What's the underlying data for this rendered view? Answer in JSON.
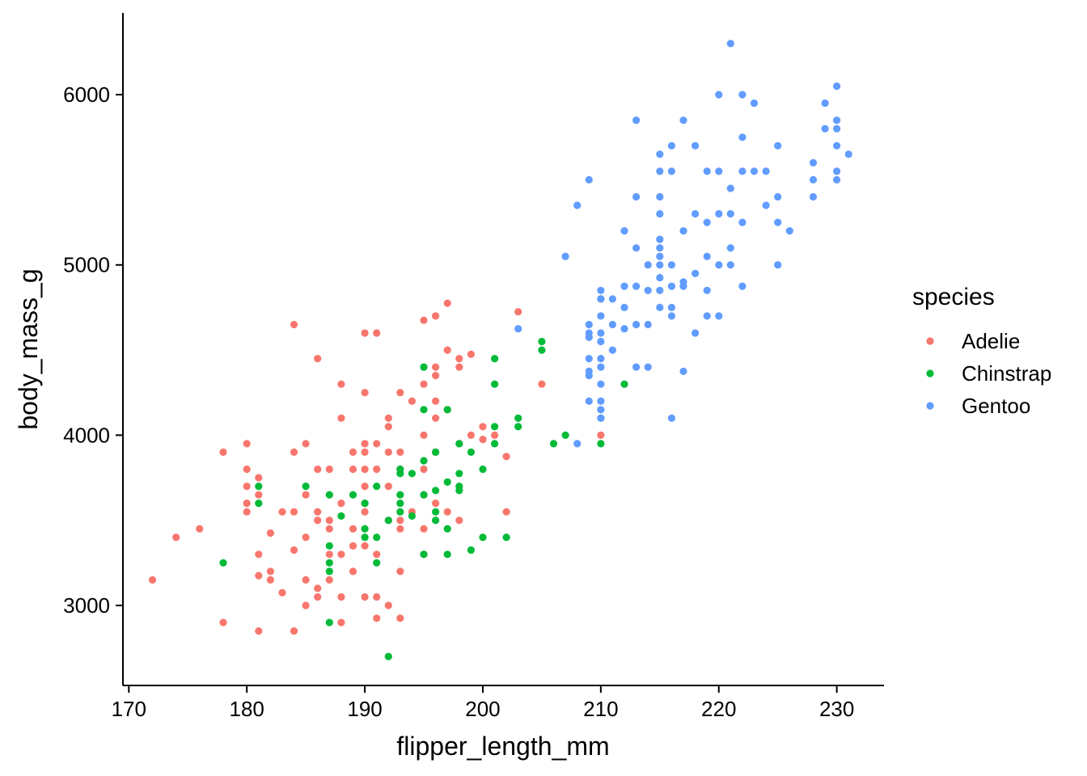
{
  "chart_data": {
    "type": "scatter",
    "title": "",
    "xlabel": "flipper_length_mm",
    "ylabel": "body_mass_g",
    "xlim": [
      169.5,
      234
    ],
    "ylim": [
      2530,
      6480
    ],
    "xticks": [
      170,
      180,
      190,
      200,
      210,
      220,
      230
    ],
    "yticks": [
      3000,
      4000,
      5000,
      6000
    ],
    "grid": false,
    "legend": {
      "title": "species",
      "position": "right"
    },
    "series": [
      {
        "name": "Adelie",
        "color": "#F8766D",
        "points": [
          [
            172,
            3150
          ],
          [
            174,
            3400
          ],
          [
            176,
            3450
          ],
          [
            178,
            3900
          ],
          [
            178,
            2900
          ],
          [
            180,
            3950
          ],
          [
            180,
            3800
          ],
          [
            180,
            3700
          ],
          [
            180,
            3600
          ],
          [
            180,
            3550
          ],
          [
            181,
            3750
          ],
          [
            181,
            3650
          ],
          [
            181,
            3300
          ],
          [
            181,
            3175
          ],
          [
            181,
            2850
          ],
          [
            182,
            3425
          ],
          [
            182,
            3200
          ],
          [
            182,
            3150
          ],
          [
            183,
            3550
          ],
          [
            183,
            3075
          ],
          [
            184,
            4650
          ],
          [
            184,
            3900
          ],
          [
            184,
            3550
          ],
          [
            184,
            3325
          ],
          [
            184,
            2850
          ],
          [
            185,
            3950
          ],
          [
            185,
            3650
          ],
          [
            185,
            3400
          ],
          [
            185,
            3150
          ],
          [
            185,
            3000
          ],
          [
            186,
            4450
          ],
          [
            186,
            3800
          ],
          [
            186,
            3550
          ],
          [
            186,
            3500
          ],
          [
            186,
            3100
          ],
          [
            186,
            3050
          ],
          [
            187,
            3800
          ],
          [
            187,
            3500
          ],
          [
            187,
            3450
          ],
          [
            187,
            3300
          ],
          [
            187,
            3150
          ],
          [
            188,
            4300
          ],
          [
            188,
            4100
          ],
          [
            188,
            3600
          ],
          [
            188,
            3300
          ],
          [
            188,
            3050
          ],
          [
            188,
            2900
          ],
          [
            189,
            3900
          ],
          [
            189,
            3800
          ],
          [
            189,
            3450
          ],
          [
            189,
            3350
          ],
          [
            189,
            3200
          ],
          [
            190,
            4600
          ],
          [
            190,
            4250
          ],
          [
            190,
            3950
          ],
          [
            190,
            3900
          ],
          [
            190,
            3800
          ],
          [
            190,
            3700
          ],
          [
            190,
            3600
          ],
          [
            190,
            3550
          ],
          [
            190,
            3350
          ],
          [
            190,
            3050
          ],
          [
            191,
            4600
          ],
          [
            191,
            3950
          ],
          [
            191,
            3800
          ],
          [
            191,
            3300
          ],
          [
            191,
            3050
          ],
          [
            191,
            2925
          ],
          [
            192,
            4100
          ],
          [
            192,
            4050
          ],
          [
            192,
            3900
          ],
          [
            192,
            3700
          ],
          [
            192,
            3500
          ],
          [
            192,
            3000
          ],
          [
            193,
            4250
          ],
          [
            193,
            3900
          ],
          [
            193,
            3800
          ],
          [
            193,
            3500
          ],
          [
            193,
            3450
          ],
          [
            193,
            3200
          ],
          [
            193,
            2925
          ],
          [
            194,
            4200
          ],
          [
            194,
            3550
          ],
          [
            195,
            4675
          ],
          [
            195,
            4300
          ],
          [
            195,
            4000
          ],
          [
            195,
            3800
          ],
          [
            195,
            3650
          ],
          [
            195,
            3450
          ],
          [
            195,
            3300
          ],
          [
            196,
            4700
          ],
          [
            196,
            4400
          ],
          [
            196,
            4350
          ],
          [
            196,
            4200
          ],
          [
            196,
            4100
          ],
          [
            196,
            3900
          ],
          [
            196,
            3600
          ],
          [
            197,
            4775
          ],
          [
            197,
            4500
          ],
          [
            197,
            4150
          ],
          [
            197,
            3550
          ],
          [
            198,
            4450
          ],
          [
            198,
            4400
          ],
          [
            198,
            3950
          ],
          [
            198,
            3500
          ],
          [
            199,
            4475
          ],
          [
            199,
            4000
          ],
          [
            200,
            4050
          ],
          [
            200,
            3975
          ],
          [
            201,
            4000
          ],
          [
            202,
            3875
          ],
          [
            202,
            3550
          ],
          [
            203,
            4725
          ],
          [
            205,
            4300
          ],
          [
            210,
            4000
          ]
        ]
      },
      {
        "name": "Chinstrap",
        "color": "#00BA38",
        "points": [
          [
            178,
            3250
          ],
          [
            181,
            3700
          ],
          [
            181,
            3600
          ],
          [
            185,
            3700
          ],
          [
            187,
            3650
          ],
          [
            187,
            3350
          ],
          [
            187,
            3250
          ],
          [
            187,
            3200
          ],
          [
            187,
            2900
          ],
          [
            188,
            3525
          ],
          [
            189,
            3650
          ],
          [
            190,
            3600
          ],
          [
            190,
            3450
          ],
          [
            190,
            3400
          ],
          [
            191,
            3700
          ],
          [
            191,
            3400
          ],
          [
            191,
            3250
          ],
          [
            192,
            3500
          ],
          [
            192,
            2700
          ],
          [
            193,
            3800
          ],
          [
            193,
            3775
          ],
          [
            193,
            3650
          ],
          [
            193,
            3600
          ],
          [
            193,
            3550
          ],
          [
            194,
            3775
          ],
          [
            194,
            3525
          ],
          [
            195,
            4400
          ],
          [
            195,
            4150
          ],
          [
            195,
            3850
          ],
          [
            195,
            3650
          ],
          [
            195,
            3300
          ],
          [
            196,
            3900
          ],
          [
            196,
            3675
          ],
          [
            196,
            3550
          ],
          [
            196,
            3500
          ],
          [
            197,
            4150
          ],
          [
            197,
            3725
          ],
          [
            197,
            3450
          ],
          [
            197,
            3300
          ],
          [
            198,
            3950
          ],
          [
            198,
            3775
          ],
          [
            198,
            3700
          ],
          [
            198,
            3675
          ],
          [
            199,
            3900
          ],
          [
            199,
            3325
          ],
          [
            200,
            3800
          ],
          [
            200,
            3400
          ],
          [
            201,
            4450
          ],
          [
            201,
            4300
          ],
          [
            201,
            4050
          ],
          [
            201,
            3950
          ],
          [
            202,
            3400
          ],
          [
            203,
            4100
          ],
          [
            203,
            4050
          ],
          [
            205,
            4550
          ],
          [
            205,
            4500
          ],
          [
            206,
            3950
          ],
          [
            207,
            4000
          ],
          [
            210,
            4800
          ],
          [
            210,
            4100
          ],
          [
            210,
            3950
          ],
          [
            212,
            4300
          ]
        ]
      },
      {
        "name": "Gentoo",
        "color": "#619CFF",
        "points": [
          [
            203,
            4625
          ],
          [
            207,
            5050
          ],
          [
            208,
            5350
          ],
          [
            208,
            3950
          ],
          [
            209,
            5500
          ],
          [
            209,
            4650
          ],
          [
            209,
            4600
          ],
          [
            209,
            4575
          ],
          [
            209,
            4450
          ],
          [
            209,
            4350
          ],
          [
            209,
            4200
          ],
          [
            209,
            4375
          ],
          [
            210,
            4850
          ],
          [
            210,
            4800
          ],
          [
            210,
            4700
          ],
          [
            210,
            4600
          ],
          [
            210,
            4550
          ],
          [
            210,
            4450
          ],
          [
            210,
            4400
          ],
          [
            210,
            4300
          ],
          [
            210,
            4200
          ],
          [
            210,
            4150
          ],
          [
            210,
            4100
          ],
          [
            211,
            4800
          ],
          [
            211,
            4650
          ],
          [
            211,
            4500
          ],
          [
            212,
            5200
          ],
          [
            212,
            4875
          ],
          [
            212,
            4750
          ],
          [
            212,
            4625
          ],
          [
            213,
            5850
          ],
          [
            213,
            5400
          ],
          [
            213,
            5100
          ],
          [
            213,
            4875
          ],
          [
            213,
            4650
          ],
          [
            213,
            4400
          ],
          [
            214,
            5000
          ],
          [
            214,
            4850
          ],
          [
            214,
            4650
          ],
          [
            214,
            4400
          ],
          [
            215,
            5650
          ],
          [
            215,
            5550
          ],
          [
            215,
            5400
          ],
          [
            215,
            5300
          ],
          [
            215,
            5150
          ],
          [
            215,
            5100
          ],
          [
            215,
            5050
          ],
          [
            215,
            5000
          ],
          [
            215,
            4925
          ],
          [
            215,
            4850
          ],
          [
            215,
            4750
          ],
          [
            216,
            5700
          ],
          [
            216,
            5550
          ],
          [
            216,
            5000
          ],
          [
            216,
            4875
          ],
          [
            216,
            4750
          ],
          [
            216,
            4700
          ],
          [
            216,
            4100
          ],
          [
            217,
            5850
          ],
          [
            217,
            5200
          ],
          [
            217,
            4900
          ],
          [
            217,
            4875
          ],
          [
            217,
            4375
          ],
          [
            218,
            5700
          ],
          [
            218,
            5300
          ],
          [
            218,
            4950
          ],
          [
            218,
            4600
          ],
          [
            219,
            5550
          ],
          [
            219,
            5250
          ],
          [
            219,
            5050
          ],
          [
            219,
            4850
          ],
          [
            219,
            4700
          ],
          [
            220,
            6000
          ],
          [
            220,
            5550
          ],
          [
            220,
            5300
          ],
          [
            220,
            5000
          ],
          [
            220,
            4700
          ],
          [
            221,
            6300
          ],
          [
            221,
            5450
          ],
          [
            221,
            5300
          ],
          [
            221,
            5100
          ],
          [
            221,
            5000
          ],
          [
            222,
            6000
          ],
          [
            222,
            5750
          ],
          [
            222,
            5550
          ],
          [
            222,
            5250
          ],
          [
            222,
            4875
          ],
          [
            223,
            5950
          ],
          [
            223,
            5550
          ],
          [
            224,
            5550
          ],
          [
            224,
            5350
          ],
          [
            225,
            5700
          ],
          [
            225,
            5400
          ],
          [
            225,
            5250
          ],
          [
            225,
            5000
          ],
          [
            226,
            5200
          ],
          [
            228,
            5600
          ],
          [
            228,
            5500
          ],
          [
            228,
            5400
          ],
          [
            229,
            5950
          ],
          [
            229,
            5800
          ],
          [
            230,
            6050
          ],
          [
            230,
            5850
          ],
          [
            230,
            5800
          ],
          [
            230,
            5700
          ],
          [
            230,
            5550
          ],
          [
            230,
            5500
          ],
          [
            231,
            5650
          ]
        ]
      }
    ]
  }
}
